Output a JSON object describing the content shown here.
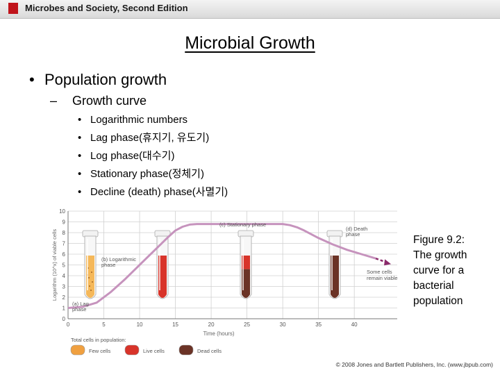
{
  "header": {
    "book_title": "Microbes and Society, Second Edition"
  },
  "slide": {
    "title": "Microbial Growth",
    "bullet_level1": "Population growth",
    "bullet_level2": "Growth curve",
    "bullet_level3": [
      "Logarithmic numbers",
      "Lag phase(휴지기, 유도기)",
      "Log phase(대수기)",
      "Stationary phase(정체기)",
      "Decline (death) phase(사멸기)"
    ]
  },
  "caption": {
    "lines": [
      "Figure 9.2:",
      "The growth",
      "curve for a",
      "bacterial",
      "population"
    ]
  },
  "copyright": "© 2008 Jones and Bartlett Publishers, Inc. (www.jbpub.com)",
  "chart_data": {
    "type": "line",
    "xlabel": "Time (hours)",
    "ylabel": "Logarithm (10^x) of viable cells",
    "x_ticks": [
      0,
      5,
      10,
      15,
      20,
      25,
      30,
      35,
      40
    ],
    "y_ticks": [
      0,
      1,
      2,
      3,
      4,
      5,
      6,
      7,
      8,
      9,
      10
    ],
    "xlim": [
      0,
      46
    ],
    "ylim": [
      0,
      10
    ],
    "series": [
      {
        "x": [
          0,
          2,
          4,
          6,
          8,
          10,
          12,
          14,
          15,
          16,
          17,
          18,
          20,
          25,
          30,
          31,
          32,
          33,
          35,
          37,
          39,
          41,
          43
        ],
        "y": [
          1.0,
          1.1,
          1.5,
          2.5,
          3.7,
          5.0,
          6.3,
          7.6,
          8.2,
          8.55,
          8.75,
          8.8,
          8.8,
          8.8,
          8.8,
          8.7,
          8.5,
          8.2,
          7.5,
          6.9,
          6.4,
          6.0,
          5.6
        ]
      }
    ],
    "phase_labels": [
      "(a) Lag phase",
      "(b) Logarithmic phase",
      "(c) Stationary phase",
      "(d) Death phase"
    ],
    "annotation": "Some cells remain viable",
    "legend_title": "Total cells in population:",
    "legend": [
      {
        "label": "Few cells",
        "color": "#f0a040"
      },
      {
        "label": "Live cells",
        "color": "#d8342a"
      },
      {
        "label": "Dead cells",
        "color": "#6b3326"
      }
    ],
    "colors": {
      "curve": "#c693bd",
      "arrow": "#8a2a6a",
      "grid": "#d0d0d0"
    }
  }
}
